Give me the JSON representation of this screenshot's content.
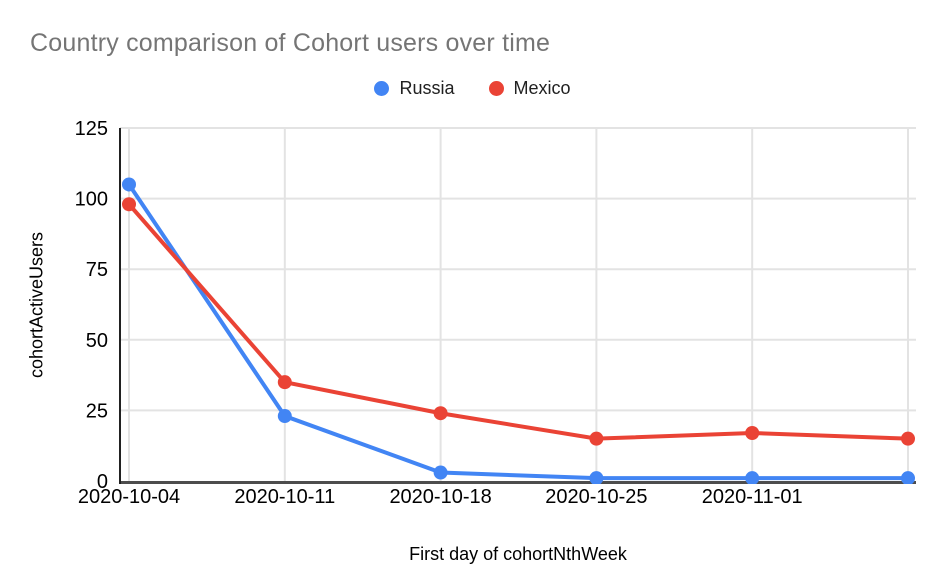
{
  "page": {
    "background": "#ffffff"
  },
  "chart_data": {
    "type": "line",
    "title": "Country comparison of Cohort users over time",
    "xlabel": "First day of cohortNthWeek",
    "ylabel": "cohortActiveUsers",
    "categories": [
      "2020-10-04",
      "2020-10-11",
      "2020-10-18",
      "2020-10-25",
      "2020-11-01",
      ""
    ],
    "series": [
      {
        "name": "Russia",
        "color": "#4285F4",
        "values": [
          105,
          23,
          3,
          1,
          1,
          1
        ]
      },
      {
        "name": "Mexico",
        "color": "#EA4335",
        "values": [
          98,
          35,
          24,
          15,
          17,
          15
        ]
      }
    ],
    "ylim": [
      0,
      125
    ],
    "yticks": [
      0,
      25,
      50,
      75,
      100,
      125
    ],
    "grid": true,
    "legend_position": "top",
    "colors": {
      "title_text": "#757575",
      "axis_text": "#000000",
      "gridline": "#e3e3e3",
      "baseline": "#4d4d4d",
      "y_axis_line": "#212121"
    }
  }
}
